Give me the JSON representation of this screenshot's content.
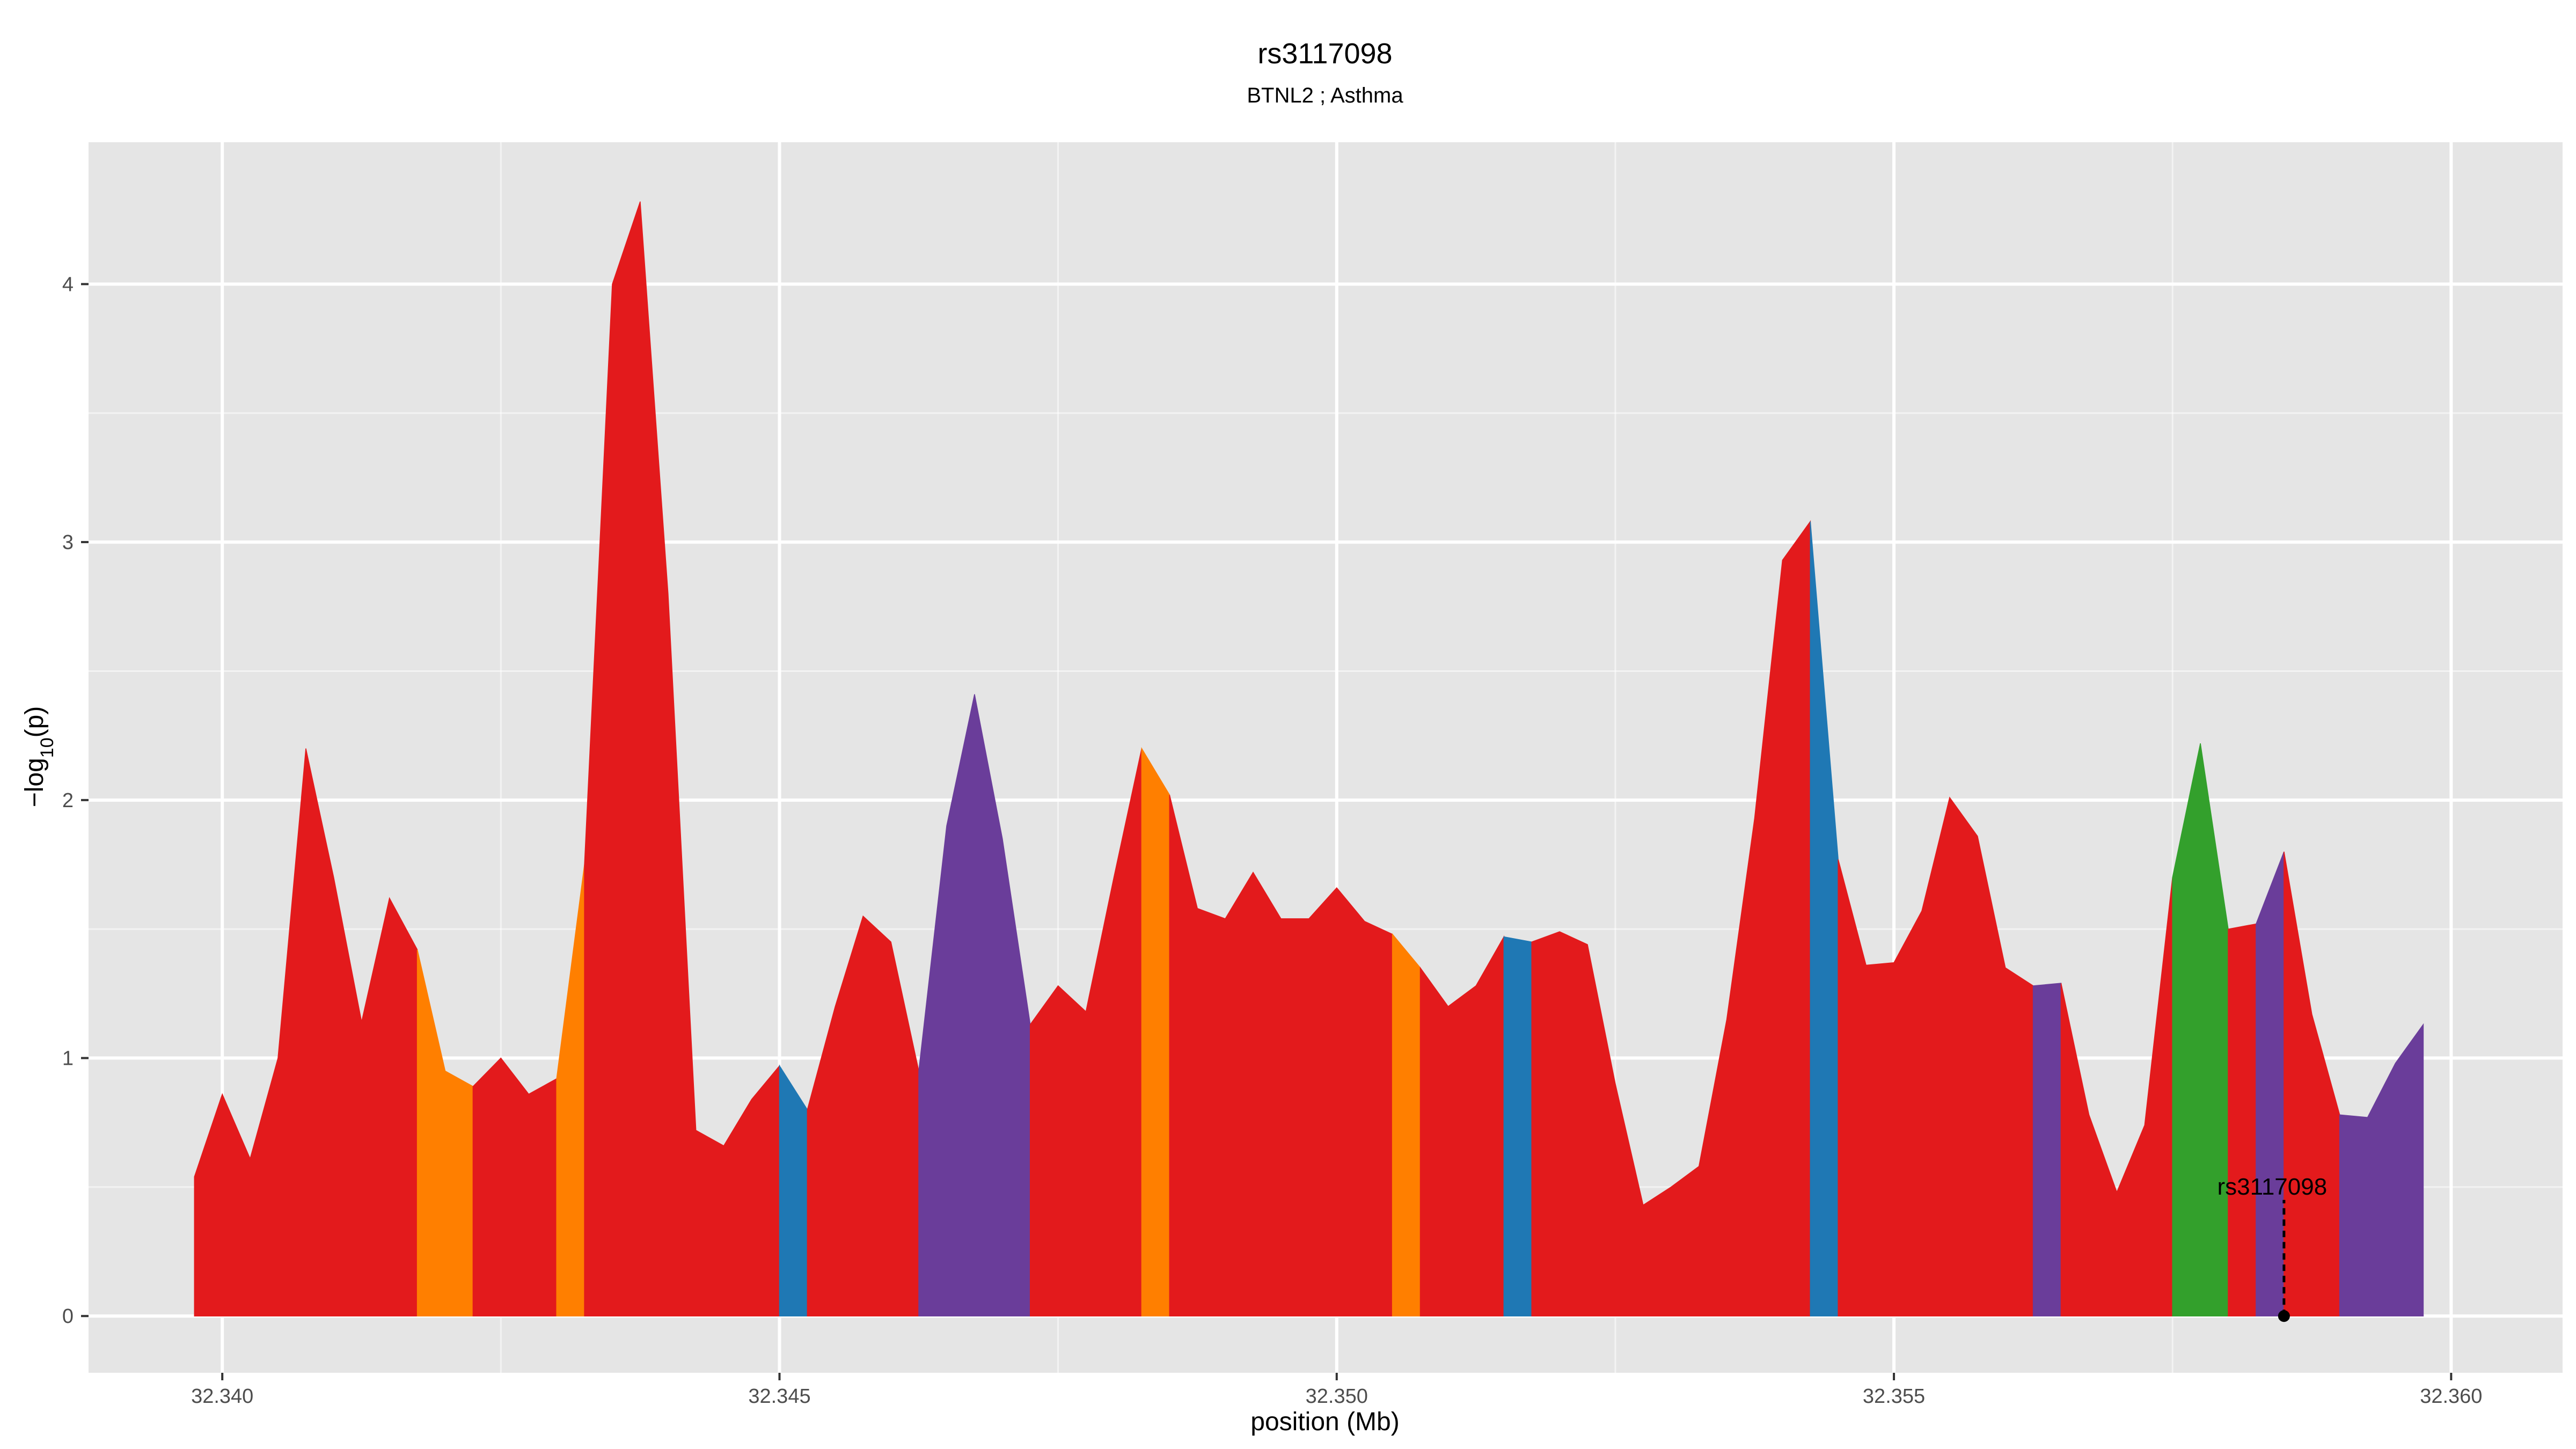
{
  "chart_data": {
    "type": "area",
    "title": "rs3117098",
    "subtitle": "BTNL2 ; Asthma",
    "xlabel": "position (Mb)",
    "ylabel": "-log10(p)",
    "xlim": [
      32.3388,
      32.361
    ],
    "ylim": [
      -0.22,
      4.55
    ],
    "x_ticks": [
      32.34,
      32.345,
      32.35,
      32.355,
      32.36
    ],
    "x_tick_labels": [
      "32.340",
      "32.345",
      "32.350",
      "32.355",
      "32.360"
    ],
    "y_ticks": [
      0,
      1,
      2,
      3,
      4
    ],
    "y_tick_labels": [
      "0",
      "1",
      "2",
      "3",
      "4"
    ],
    "grid": true,
    "palette": {
      "red": "#e31a1c",
      "orange": "#ff7f00",
      "blue": "#1f78b4",
      "purple": "#6a3d9a",
      "green": "#33a02c"
    },
    "panel_bg": "#e5e5e5",
    "gridline_color": "#ffffff",
    "marker": {
      "label": "rs3117098",
      "x": 32.3585,
      "y": 0,
      "label_y": 0.5
    },
    "segments": [
      {
        "color": "red",
        "points": [
          [
            32.33975,
            0.54
          ],
          [
            32.34,
            0.86
          ],
          [
            32.34025,
            0.61
          ],
          [
            32.3405,
            1.0
          ],
          [
            32.34075,
            2.2
          ],
          [
            32.341,
            1.7
          ],
          [
            32.34125,
            1.14
          ],
          [
            32.3415,
            1.62
          ],
          [
            32.34175,
            1.42
          ]
        ]
      },
      {
        "color": "orange",
        "points": [
          [
            32.34175,
            1.42
          ],
          [
            32.342,
            0.95
          ],
          [
            32.34225,
            0.89
          ]
        ]
      },
      {
        "color": "red",
        "points": [
          [
            32.34225,
            0.89
          ],
          [
            32.3425,
            1.0
          ],
          [
            32.34275,
            0.86
          ],
          [
            32.343,
            0.92
          ]
        ]
      },
      {
        "color": "orange",
        "points": [
          [
            32.343,
            0.92
          ],
          [
            32.34325,
            1.75
          ]
        ]
      },
      {
        "color": "red",
        "points": [
          [
            32.34325,
            1.75
          ],
          [
            32.3435,
            4.0
          ],
          [
            32.34375,
            4.32
          ],
          [
            32.344,
            2.8
          ],
          [
            32.34425,
            0.72
          ],
          [
            32.3445,
            0.66
          ],
          [
            32.34475,
            0.84
          ],
          [
            32.345,
            0.97
          ]
        ]
      },
      {
        "color": "blue",
        "points": [
          [
            32.345,
            0.97
          ],
          [
            32.34525,
            0.8
          ]
        ]
      },
      {
        "color": "red",
        "points": [
          [
            32.34525,
            0.8
          ],
          [
            32.3455,
            1.2
          ],
          [
            32.34575,
            1.55
          ],
          [
            32.346,
            1.45
          ],
          [
            32.34625,
            0.95
          ]
        ]
      },
      {
        "color": "purple",
        "points": [
          [
            32.34625,
            0.95
          ],
          [
            32.3465,
            1.9
          ],
          [
            32.34675,
            2.41
          ],
          [
            32.347,
            1.85
          ],
          [
            32.34725,
            1.13
          ]
        ]
      },
      {
        "color": "red",
        "points": [
          [
            32.34725,
            1.13
          ],
          [
            32.3475,
            1.28
          ],
          [
            32.34775,
            1.18
          ],
          [
            32.348,
            1.7
          ],
          [
            32.34825,
            2.2
          ]
        ]
      },
      {
        "color": "orange",
        "points": [
          [
            32.34825,
            2.2
          ],
          [
            32.3485,
            2.02
          ]
        ]
      },
      {
        "color": "red",
        "points": [
          [
            32.3485,
            2.02
          ],
          [
            32.34875,
            1.58
          ],
          [
            32.349,
            1.54
          ],
          [
            32.34925,
            1.72
          ],
          [
            32.3495,
            1.54
          ],
          [
            32.34975,
            1.54
          ],
          [
            32.35,
            1.66
          ],
          [
            32.35025,
            1.53
          ],
          [
            32.3505,
            1.48
          ]
        ]
      },
      {
        "color": "orange",
        "points": [
          [
            32.3505,
            1.48
          ],
          [
            32.35075,
            1.35
          ]
        ]
      },
      {
        "color": "red",
        "points": [
          [
            32.35075,
            1.35
          ],
          [
            32.351,
            1.2
          ],
          [
            32.35125,
            1.28
          ],
          [
            32.3515,
            1.47
          ]
        ]
      },
      {
        "color": "blue",
        "points": [
          [
            32.3515,
            1.47
          ],
          [
            32.35175,
            1.45
          ]
        ]
      },
      {
        "color": "red",
        "points": [
          [
            32.35175,
            1.45
          ],
          [
            32.352,
            1.49
          ],
          [
            32.35225,
            1.44
          ],
          [
            32.3525,
            0.9
          ],
          [
            32.35275,
            0.43
          ],
          [
            32.353,
            0.5
          ],
          [
            32.35325,
            0.58
          ],
          [
            32.3535,
            1.15
          ],
          [
            32.35375,
            1.93
          ],
          [
            32.354,
            2.93
          ],
          [
            32.35425,
            3.08
          ]
        ]
      },
      {
        "color": "blue",
        "points": [
          [
            32.35425,
            3.08
          ],
          [
            32.3545,
            1.77
          ]
        ]
      },
      {
        "color": "red",
        "points": [
          [
            32.3545,
            1.77
          ],
          [
            32.35475,
            1.36
          ],
          [
            32.355,
            1.37
          ],
          [
            32.35525,
            1.57
          ],
          [
            32.3555,
            2.01
          ],
          [
            32.35575,
            1.86
          ],
          [
            32.356,
            1.35
          ],
          [
            32.35625,
            1.28
          ]
        ]
      },
      {
        "color": "purple",
        "points": [
          [
            32.35625,
            1.28
          ],
          [
            32.3565,
            1.29
          ]
        ]
      },
      {
        "color": "red",
        "points": [
          [
            32.3565,
            1.29
          ],
          [
            32.35675,
            0.78
          ],
          [
            32.357,
            0.48
          ],
          [
            32.35725,
            0.74
          ],
          [
            32.3575,
            1.7
          ]
        ]
      },
      {
        "color": "green",
        "points": [
          [
            32.3575,
            1.7
          ],
          [
            32.35775,
            2.22
          ],
          [
            32.358,
            1.5
          ]
        ]
      },
      {
        "color": "red",
        "points": [
          [
            32.358,
            1.5
          ],
          [
            32.35825,
            1.52
          ]
        ]
      },
      {
        "color": "purple",
        "points": [
          [
            32.35825,
            1.52
          ],
          [
            32.3585,
            1.8
          ]
        ]
      },
      {
        "color": "red",
        "points": [
          [
            32.3585,
            1.8
          ],
          [
            32.35875,
            1.17
          ],
          [
            32.359,
            0.78
          ]
        ]
      },
      {
        "color": "purple",
        "points": [
          [
            32.359,
            0.78
          ],
          [
            32.35925,
            0.77
          ],
          [
            32.3595,
            0.98
          ],
          [
            32.35975,
            1.13
          ]
        ]
      }
    ]
  }
}
